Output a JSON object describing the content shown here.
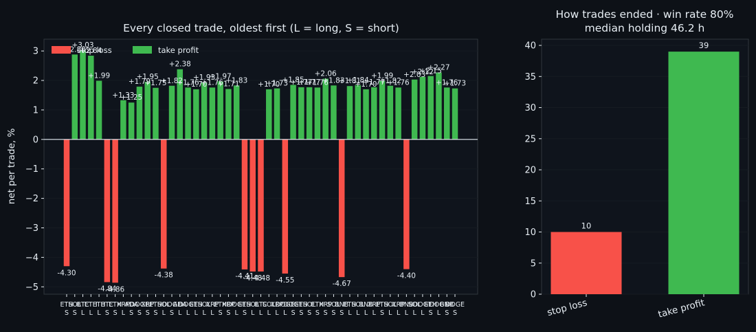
{
  "colors": {
    "background": "#0d1117",
    "panel": "#0f141c",
    "stop_loss": "#f85149",
    "take_profit": "#3fb950",
    "text": "#e6edf3",
    "axis": "#30363d",
    "grid": "#161b22"
  },
  "chart_data": [
    {
      "type": "bar",
      "title": "Every closed trade, oldest first (L = long, S = short)",
      "xlabel": "",
      "ylabel": "net per trade, %",
      "ylim": [
        -5.25,
        3.4
      ],
      "yticks": [
        -5,
        -4,
        -3,
        -2,
        -1,
        0,
        1,
        2,
        3
      ],
      "grid": true,
      "legend_position": "top-left",
      "legend": [
        {
          "label": "stop loss",
          "color": "#f85149"
        },
        {
          "label": "take profit",
          "color": "#3fb950"
        }
      ],
      "trades": [
        {
          "symbol": "ETH",
          "side": "S",
          "value": -4.3,
          "label": "-4.30",
          "result": "stop loss"
        },
        {
          "symbol": "SOL",
          "side": "S",
          "value": 2.88,
          "label": "+2.88",
          "result": "take profit"
        },
        {
          "symbol": "BTC",
          "side": "L",
          "value": 3.03,
          "label": "+3.03",
          "result": "take profit"
        },
        {
          "symbol": "ETH",
          "side": "L",
          "value": 2.84,
          "label": "+2.84",
          "result": "take profit"
        },
        {
          "symbol": "ETH",
          "side": "L",
          "value": 1.99,
          "label": "+1.99",
          "result": "take profit"
        },
        {
          "symbol": "BTC",
          "side": "S",
          "value": -4.84,
          "label": "-4.84",
          "result": "stop loss"
        },
        {
          "symbol": "ETH",
          "side": "S",
          "value": -4.86,
          "label": "-4.86",
          "result": "stop loss"
        },
        {
          "symbol": "XRP",
          "side": "L",
          "value": 1.33,
          "label": "+1.33",
          "result": "take profit"
        },
        {
          "symbol": "ADA",
          "side": "S",
          "value": 1.25,
          "label": "+1.25",
          "result": "take profit"
        },
        {
          "symbol": "DOGE",
          "side": "S",
          "value": 1.79,
          "label": "+1.79",
          "result": "take profit"
        },
        {
          "symbol": "XRP",
          "side": "S",
          "value": 1.95,
          "label": "+1.95",
          "result": "take profit"
        },
        {
          "symbol": "ETH",
          "side": "S",
          "value": 1.75,
          "label": "+1.75",
          "result": "take profit"
        },
        {
          "symbol": "SOL",
          "side": "L",
          "value": -4.38,
          "label": "-4.38",
          "result": "stop loss"
        },
        {
          "symbol": "DOGE",
          "side": "S",
          "value": 1.82,
          "label": "+1.82",
          "result": "take profit"
        },
        {
          "symbol": "ADA",
          "side": "L",
          "value": 2.38,
          "label": "+2.38",
          "result": "take profit"
        },
        {
          "symbol": "DOGE",
          "side": "L",
          "value": 1.76,
          "label": "+1.76",
          "result": "take profit"
        },
        {
          "symbol": "ETH",
          "side": "L",
          "value": 1.7,
          "label": "+1.70",
          "result": "take profit"
        },
        {
          "symbol": "SOL",
          "side": "L",
          "value": 1.93,
          "label": "+1.93",
          "result": "take profit"
        },
        {
          "symbol": "XRP",
          "side": "L",
          "value": 1.76,
          "label": "+1.76",
          "result": "take profit"
        },
        {
          "symbol": "ETH",
          "side": "S",
          "value": 1.97,
          "label": "+1.97",
          "result": "take profit"
        },
        {
          "symbol": "XRP",
          "side": "S",
          "value": 1.71,
          "label": "+1.71",
          "result": "take profit"
        },
        {
          "symbol": "DOGE",
          "side": "L",
          "value": 1.83,
          "label": "+1.83",
          "result": "take profit"
        },
        {
          "symbol": "ETH",
          "side": "S",
          "value": -4.41,
          "label": "-4.41",
          "result": "stop loss"
        },
        {
          "symbol": "SOL",
          "side": "L",
          "value": -4.48,
          "label": "-4.48",
          "result": "stop loss"
        },
        {
          "symbol": "BTC",
          "side": "L",
          "value": -4.48,
          "label": "-4.48",
          "result": "stop loss"
        },
        {
          "symbol": "SOL",
          "side": "L",
          "value": 1.7,
          "label": "+1.70",
          "result": "take profit"
        },
        {
          "symbol": "XRP",
          "side": "L",
          "value": 1.73,
          "label": "+1.73",
          "result": "take profit"
        },
        {
          "symbol": "DOGE",
          "side": "L",
          "value": -4.55,
          "label": "-4.55",
          "result": "stop loss"
        },
        {
          "symbol": "DOGE",
          "side": "S",
          "value": 1.85,
          "label": "+1.85",
          "result": "take profit"
        },
        {
          "symbol": "ETH",
          "side": "S",
          "value": 1.77,
          "label": "+1.77",
          "result": "take profit"
        },
        {
          "symbol": "SOL",
          "side": "S",
          "value": 1.77,
          "label": "+1.77",
          "result": "take profit"
        },
        {
          "symbol": "ETH",
          "side": "S",
          "value": 1.76,
          "label": "+1.76",
          "result": "take profit"
        },
        {
          "symbol": "XRP",
          "side": "S",
          "value": 2.06,
          "label": "+2.06",
          "result": "take profit"
        },
        {
          "symbol": "SOL",
          "side": "S",
          "value": 1.83,
          "label": "+1.83",
          "result": "take profit"
        },
        {
          "symbol": "BNB",
          "side": "S",
          "value": -4.67,
          "label": "-4.67",
          "result": "stop loss"
        },
        {
          "symbol": "ETH",
          "side": "L",
          "value": 1.81,
          "label": "+1.81",
          "result": "take profit"
        },
        {
          "symbol": "SOL",
          "side": "L",
          "value": 1.84,
          "label": "+1.84",
          "result": "take profit"
        },
        {
          "symbol": "BNB",
          "side": "L",
          "value": 1.7,
          "label": "+1.70",
          "result": "take profit"
        },
        {
          "symbol": "XRP",
          "side": "L",
          "value": 1.77,
          "label": "+1.77",
          "result": "take profit"
        },
        {
          "symbol": "ETH",
          "side": "S",
          "value": 1.99,
          "label": "+1.99",
          "result": "take profit"
        },
        {
          "symbol": "SOL",
          "side": "L",
          "value": 1.82,
          "label": "+1.82",
          "result": "take profit"
        },
        {
          "symbol": "XRP",
          "side": "L",
          "value": 1.76,
          "label": "+1.76",
          "result": "take profit"
        },
        {
          "symbol": "BNB",
          "side": "L",
          "value": -4.4,
          "label": "-4.40",
          "result": "stop loss"
        },
        {
          "symbol": "SOL",
          "side": "L",
          "value": 2.03,
          "label": "+2.03",
          "result": "take profit"
        },
        {
          "symbol": "DOGE",
          "side": "L",
          "value": 2.12,
          "label": "+2.12",
          "result": "take profit"
        },
        {
          "symbol": "ETH",
          "side": "S",
          "value": 2.15,
          "label": "+2.15",
          "result": "take profit"
        },
        {
          "symbol": "DOGE",
          "side": "L",
          "value": 2.27,
          "label": "+2.27",
          "result": "take profit"
        },
        {
          "symbol": "BNB",
          "side": "S",
          "value": 1.76,
          "label": "+1.76",
          "result": "take profit"
        },
        {
          "symbol": "DOGE",
          "side": "S",
          "value": 1.73,
          "label": "+1.73",
          "result": "take profit"
        }
      ]
    },
    {
      "type": "bar",
      "title": "How trades ended · win rate 80%",
      "subtitle": "median holding 46.2 h",
      "xlabel": "",
      "ylabel": "",
      "ylim": [
        0,
        41
      ],
      "yticks": [
        0,
        5,
        10,
        15,
        20,
        25,
        30,
        35,
        40
      ],
      "grid": true,
      "categories": [
        "stop loss",
        "take profit"
      ],
      "values": [
        10,
        39
      ],
      "colors": [
        "#f85149",
        "#3fb950"
      ]
    }
  ]
}
